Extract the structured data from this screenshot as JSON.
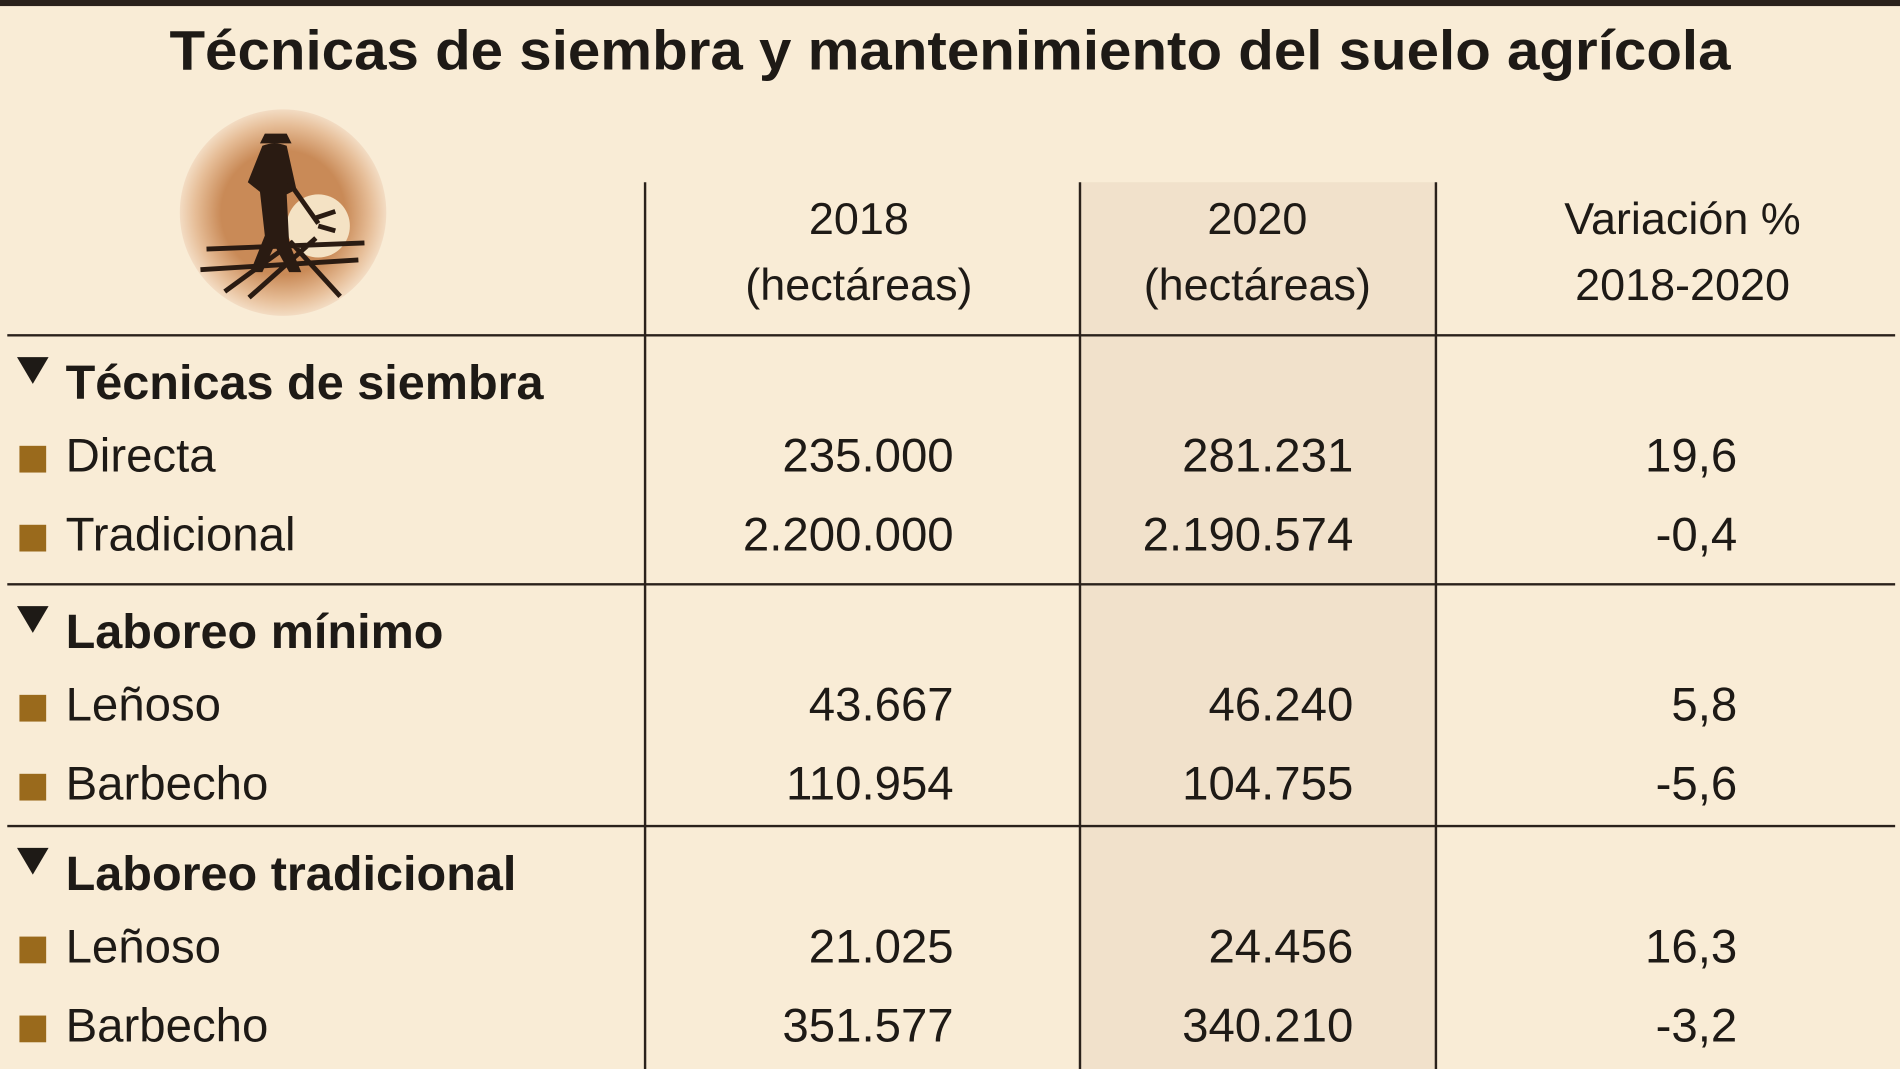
{
  "header": {
    "title": "Técnicas de siembra y mantenimiento del suelo agrícola"
  },
  "table": {
    "columns": [
      [
        "2018",
        "(hectáreas)"
      ],
      [
        "2020",
        "(hectáreas)"
      ],
      [
        "Variación %",
        "2018-2020"
      ]
    ],
    "sections": [
      {
        "title": "Técnicas de siembra",
        "rows": [
          {
            "label": "Directa",
            "values": [
              "235.000",
              "281.231",
              "19,6"
            ]
          },
          {
            "label": "Tradicional",
            "values": [
              "2.200.000",
              "2.190.574",
              "-0,4"
            ]
          }
        ]
      },
      {
        "title": "Laboreo mínimo",
        "rows": [
          {
            "label": "Leñoso",
            "values": [
              "43.667",
              "46.240",
              "5,8"
            ]
          },
          {
            "label": "Barbecho",
            "values": [
              "110.954",
              "104.755",
              "-5,6"
            ]
          }
        ]
      },
      {
        "title": "Laboreo tradicional",
        "rows": [
          {
            "label": "Leñoso",
            "values": [
              "21.025",
              "24.456",
              "16,3"
            ]
          },
          {
            "label": "Barbecho",
            "values": [
              "351.577",
              "340.210",
              "-3,2"
            ]
          }
        ]
      }
    ]
  }
}
